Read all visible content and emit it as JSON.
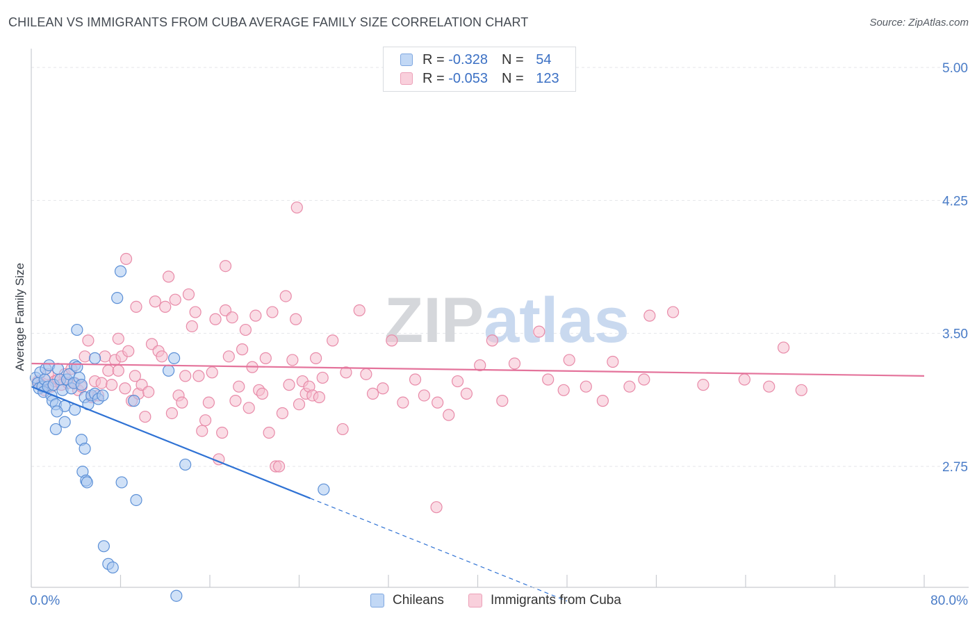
{
  "header": {
    "title": "CHILEAN VS IMMIGRANTS FROM CUBA AVERAGE FAMILY SIZE CORRELATION CHART",
    "source": "Source: ZipAtlas.com"
  },
  "stats_legend": [
    {
      "r_label": "R = ",
      "r_value": "-0.328",
      "n_label": "N = ",
      "n_value": "54"
    },
    {
      "r_label": "R = ",
      "r_value": "-0.053",
      "n_label": "N = ",
      "n_value": "123"
    }
  ],
  "watermark": {
    "part1": "ZIP",
    "part2": "atlas"
  },
  "colors": {
    "blue_fill": "#aac8f0",
    "blue_stroke": "#5b8fd6",
    "blue_line": "#2f72d4",
    "pink_fill": "#f6bfd0",
    "pink_stroke": "#e88aa8",
    "pink_line": "#e4739b",
    "grid": "#e4e6ea",
    "axis": "#c9ccd1",
    "tick_text": "#4a7cc7"
  },
  "chart_data": {
    "type": "scatter",
    "title": "CHILEAN VS IMMIGRANTS FROM CUBA AVERAGE FAMILY SIZE CORRELATION CHART",
    "xlabel": "",
    "ylabel": "Average Family Size",
    "xlim": [
      0,
      80
    ],
    "ylim": [
      2.0,
      5.1
    ],
    "x_tick_labels": [
      "0.0%",
      "80.0%"
    ],
    "y_ticks": [
      2.75,
      3.5,
      4.25,
      5.0
    ],
    "y_tick_labels": [
      "2.75",
      "3.50",
      "4.25",
      "5.00"
    ],
    "grid": true,
    "legend_position": "bottom",
    "series": [
      {
        "name": "Chileans",
        "r": -0.328,
        "n": 54,
        "trend": {
          "x0": 0,
          "y0": 3.2,
          "x1": 25,
          "y1": 2.57,
          "dashed_to_x": 48
        },
        "points": [
          [
            0.4,
            3.25
          ],
          [
            0.6,
            3.22
          ],
          [
            0.7,
            3.19
          ],
          [
            0.8,
            3.28
          ],
          [
            1.0,
            3.2
          ],
          [
            1.1,
            3.17
          ],
          [
            1.2,
            3.24
          ],
          [
            1.3,
            3.3
          ],
          [
            1.5,
            3.2
          ],
          [
            1.6,
            3.32
          ],
          [
            1.8,
            3.15
          ],
          [
            1.9,
            3.12
          ],
          [
            2.0,
            3.21
          ],
          [
            2.2,
            3.1
          ],
          [
            2.4,
            3.3
          ],
          [
            2.6,
            3.24
          ],
          [
            2.8,
            3.18
          ],
          [
            3.0,
            3.09
          ],
          [
            3.2,
            3.24
          ],
          [
            3.4,
            3.27
          ],
          [
            3.6,
            3.19
          ],
          [
            3.8,
            3.22
          ],
          [
            3.9,
            3.32
          ],
          [
            4.1,
            3.31
          ],
          [
            4.3,
            3.25
          ],
          [
            4.5,
            3.21
          ],
          [
            4.8,
            3.14
          ],
          [
            5.1,
            3.1
          ],
          [
            5.4,
            3.15
          ],
          [
            5.7,
            3.16
          ],
          [
            6.0,
            3.13
          ],
          [
            6.4,
            3.15
          ],
          [
            2.3,
            3.06
          ],
          [
            3.0,
            3.0
          ],
          [
            2.2,
            2.96
          ],
          [
            3.9,
            3.07
          ],
          [
            4.1,
            3.52
          ],
          [
            4.5,
            2.9
          ],
          [
            4.6,
            2.72
          ],
          [
            5.7,
            3.36
          ],
          [
            4.8,
            2.85
          ],
          [
            4.9,
            2.67
          ],
          [
            5.0,
            2.66
          ],
          [
            6.5,
            2.3
          ],
          [
            6.9,
            2.2
          ],
          [
            7.3,
            2.18
          ],
          [
            7.7,
            3.7
          ],
          [
            8.0,
            3.85
          ],
          [
            8.1,
            2.66
          ],
          [
            9.4,
            2.56
          ],
          [
            9.2,
            3.12
          ],
          [
            12.3,
            3.29
          ],
          [
            12.8,
            3.36
          ],
          [
            13.8,
            2.76
          ],
          [
            26.2,
            2.62
          ],
          [
            13.0,
            2.02
          ]
        ]
      },
      {
        "name": "Immigrants from Cuba",
        "r": -0.053,
        "n": 123,
        "trend": {
          "x0": 0,
          "y0": 3.33,
          "x1": 80,
          "y1": 3.26
        },
        "points": [
          [
            0.6,
            3.23
          ],
          [
            0.9,
            3.21
          ],
          [
            1.2,
            3.18
          ],
          [
            1.5,
            3.27
          ],
          [
            1.8,
            3.2
          ],
          [
            2.1,
            3.23
          ],
          [
            2.4,
            3.24
          ],
          [
            2.7,
            3.21
          ],
          [
            3.0,
            3.27
          ],
          [
            3.3,
            3.22
          ],
          [
            3.6,
            3.3
          ],
          [
            3.9,
            3.22
          ],
          [
            4.2,
            3.18
          ],
          [
            4.5,
            3.2
          ],
          [
            4.8,
            3.37
          ],
          [
            5.1,
            3.46
          ],
          [
            5.4,
            3.14
          ],
          [
            5.7,
            3.23
          ],
          [
            6.0,
            3.15
          ],
          [
            6.3,
            3.22
          ],
          [
            6.6,
            3.37
          ],
          [
            6.9,
            3.29
          ],
          [
            7.2,
            3.21
          ],
          [
            7.5,
            3.35
          ],
          [
            7.8,
            3.29
          ],
          [
            8.1,
            3.37
          ],
          [
            8.4,
            3.19
          ],
          [
            8.7,
            3.4
          ],
          [
            9.0,
            3.12
          ],
          [
            9.3,
            3.26
          ],
          [
            9.6,
            3.16
          ],
          [
            9.9,
            3.21
          ],
          [
            10.2,
            3.03
          ],
          [
            10.5,
            3.17
          ],
          [
            10.8,
            3.44
          ],
          [
            11.1,
            3.68
          ],
          [
            11.4,
            3.4
          ],
          [
            11.7,
            3.37
          ],
          [
            12.0,
            3.65
          ],
          [
            12.3,
            3.82
          ],
          [
            12.6,
            3.05
          ],
          [
            12.9,
            3.69
          ],
          [
            13.2,
            3.15
          ],
          [
            13.5,
            3.11
          ],
          [
            13.8,
            3.26
          ],
          [
            14.1,
            3.72
          ],
          [
            14.4,
            3.54
          ],
          [
            14.7,
            3.62
          ],
          [
            15.0,
            3.26
          ],
          [
            15.3,
            2.95
          ],
          [
            15.6,
            3.01
          ],
          [
            15.9,
            3.11
          ],
          [
            16.2,
            3.28
          ],
          [
            16.5,
            3.58
          ],
          [
            16.8,
            2.79
          ],
          [
            17.1,
            2.94
          ],
          [
            17.4,
            3.63
          ],
          [
            17.7,
            3.37
          ],
          [
            18.0,
            3.59
          ],
          [
            18.3,
            3.12
          ],
          [
            18.6,
            3.2
          ],
          [
            18.9,
            3.41
          ],
          [
            19.2,
            3.52
          ],
          [
            19.5,
            3.08
          ],
          [
            19.8,
            3.31
          ],
          [
            20.1,
            3.6
          ],
          [
            20.4,
            3.18
          ],
          [
            20.7,
            3.16
          ],
          [
            21.0,
            3.36
          ],
          [
            21.3,
            2.94
          ],
          [
            21.6,
            3.62
          ],
          [
            21.9,
            2.75
          ],
          [
            22.2,
            2.75
          ],
          [
            22.5,
            3.05
          ],
          [
            22.8,
            3.71
          ],
          [
            23.1,
            3.21
          ],
          [
            23.4,
            3.35
          ],
          [
            23.7,
            3.58
          ],
          [
            24.0,
            3.1
          ],
          [
            24.3,
            3.23
          ],
          [
            24.6,
            3.16
          ],
          [
            24.9,
            3.2
          ],
          [
            25.2,
            3.15
          ],
          [
            25.5,
            3.36
          ],
          [
            25.8,
            3.14
          ],
          [
            26.1,
            3.25
          ],
          [
            27.0,
            3.46
          ],
          [
            27.9,
            2.96
          ],
          [
            28.2,
            3.28
          ],
          [
            29.4,
            3.63
          ],
          [
            30.0,
            3.27
          ],
          [
            30.6,
            3.16
          ],
          [
            31.5,
            3.19
          ],
          [
            32.3,
            3.46
          ],
          [
            33.3,
            3.11
          ],
          [
            34.4,
            3.24
          ],
          [
            35.2,
            3.15
          ],
          [
            36.4,
            3.11
          ],
          [
            37.4,
            3.04
          ],
          [
            38.2,
            3.23
          ],
          [
            39.0,
            3.16
          ],
          [
            40.2,
            3.32
          ],
          [
            41.3,
            3.46
          ],
          [
            42.2,
            3.12
          ],
          [
            43.3,
            3.33
          ],
          [
            45.5,
            3.51
          ],
          [
            46.3,
            3.24
          ],
          [
            47.7,
            3.18
          ],
          [
            48.2,
            3.35
          ],
          [
            49.7,
            3.2
          ],
          [
            51.2,
            3.12
          ],
          [
            52.1,
            3.34
          ],
          [
            53.6,
            3.2
          ],
          [
            54.9,
            3.24
          ],
          [
            55.4,
            3.6
          ],
          [
            57.5,
            3.62
          ],
          [
            60.2,
            3.21
          ],
          [
            63.9,
            3.24
          ],
          [
            66.1,
            3.2
          ],
          [
            67.4,
            3.42
          ],
          [
            69.0,
            3.18
          ],
          [
            23.8,
            4.21
          ],
          [
            8.5,
            3.92
          ],
          [
            17.4,
            3.88
          ],
          [
            36.3,
            2.52
          ],
          [
            9.4,
            3.65
          ],
          [
            7.8,
            3.47
          ]
        ]
      }
    ]
  },
  "bottom_legend": {
    "chileans": "Chileans",
    "cuba": "Immigrants from Cuba"
  }
}
